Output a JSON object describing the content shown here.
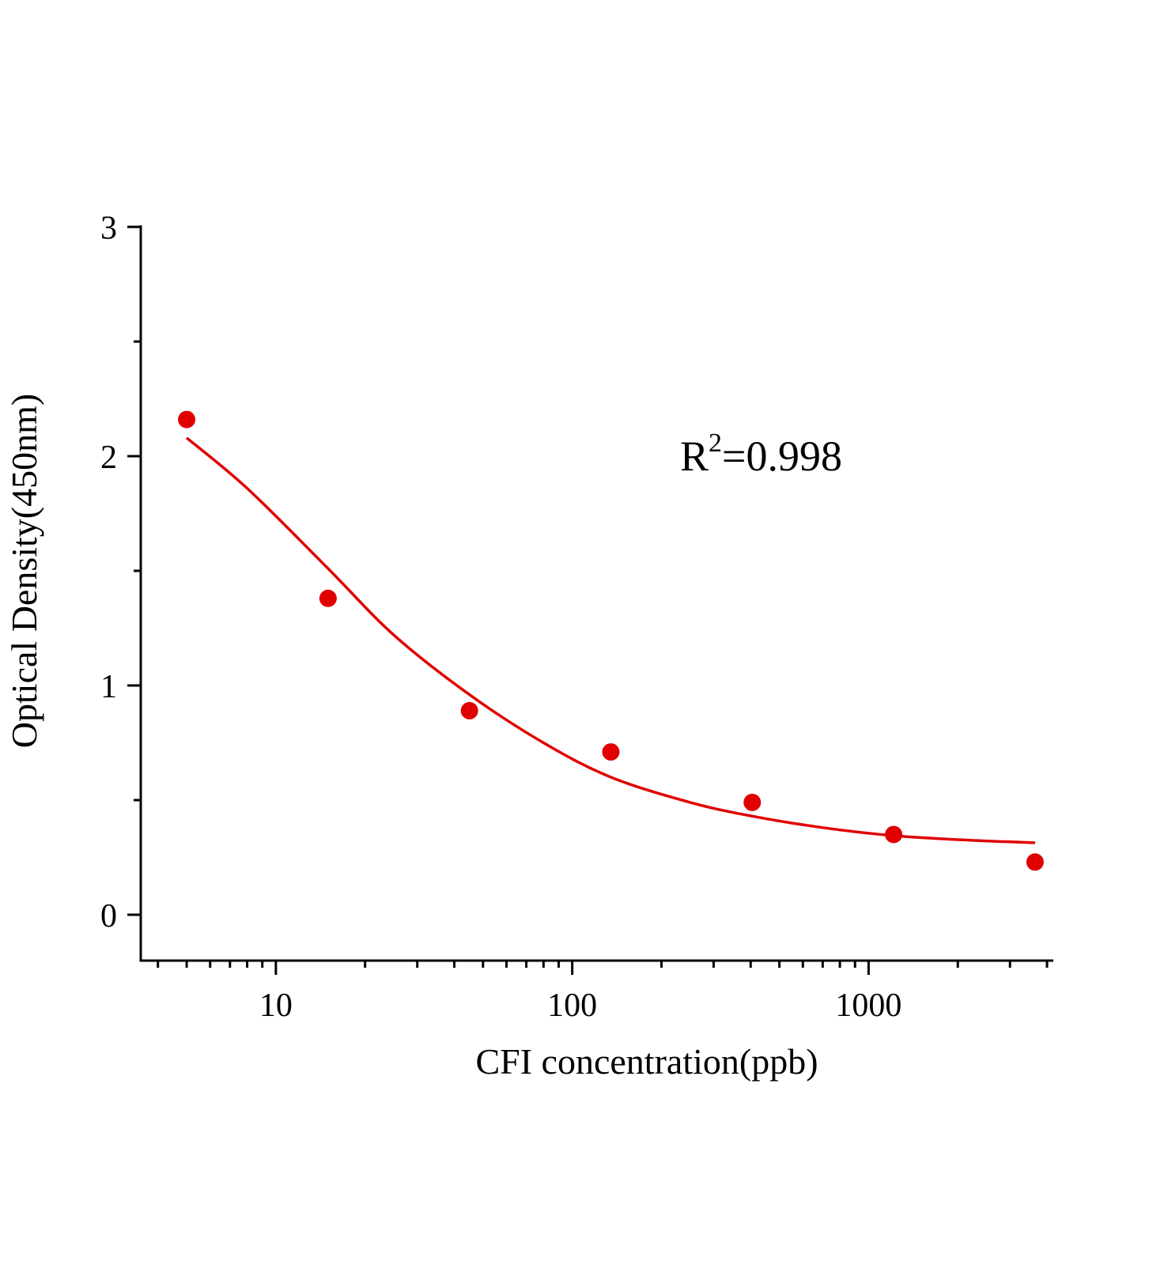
{
  "chart_data": {
    "type": "scatter",
    "title": "",
    "xlabel": "CFI concentration(ppb)",
    "ylabel": "Optical Density(450nm)",
    "x_scale": "log",
    "xlim": [
      3.5,
      4200
    ],
    "ylim": [
      -0.2,
      3
    ],
    "x_ticks": [
      10,
      100,
      1000
    ],
    "x_tick_labels": [
      "10",
      "100",
      "1000"
    ],
    "y_ticks": [
      0,
      1,
      2,
      3
    ],
    "y_tick_labels": [
      "0",
      "1",
      "2",
      "3"
    ],
    "grid": false,
    "annotation": {
      "base": "R",
      "sup": "2",
      "rest": "=0.998"
    },
    "color": "#e00000",
    "series": [
      {
        "kind": "points",
        "x": [
          5,
          15,
          45,
          135,
          405,
          1215,
          3645
        ],
        "y": [
          2.16,
          1.38,
          0.89,
          0.71,
          0.49,
          0.35,
          0.23
        ]
      },
      {
        "kind": "fit-curve",
        "x": [
          5,
          8,
          15,
          25,
          45,
          80,
          135,
          250,
          405,
          700,
          1215,
          2200,
          3645
        ],
        "y": [
          2.08,
          1.86,
          1.51,
          1.22,
          0.96,
          0.75,
          0.6,
          0.49,
          0.43,
          0.38,
          0.345,
          0.325,
          0.314
        ]
      }
    ]
  }
}
